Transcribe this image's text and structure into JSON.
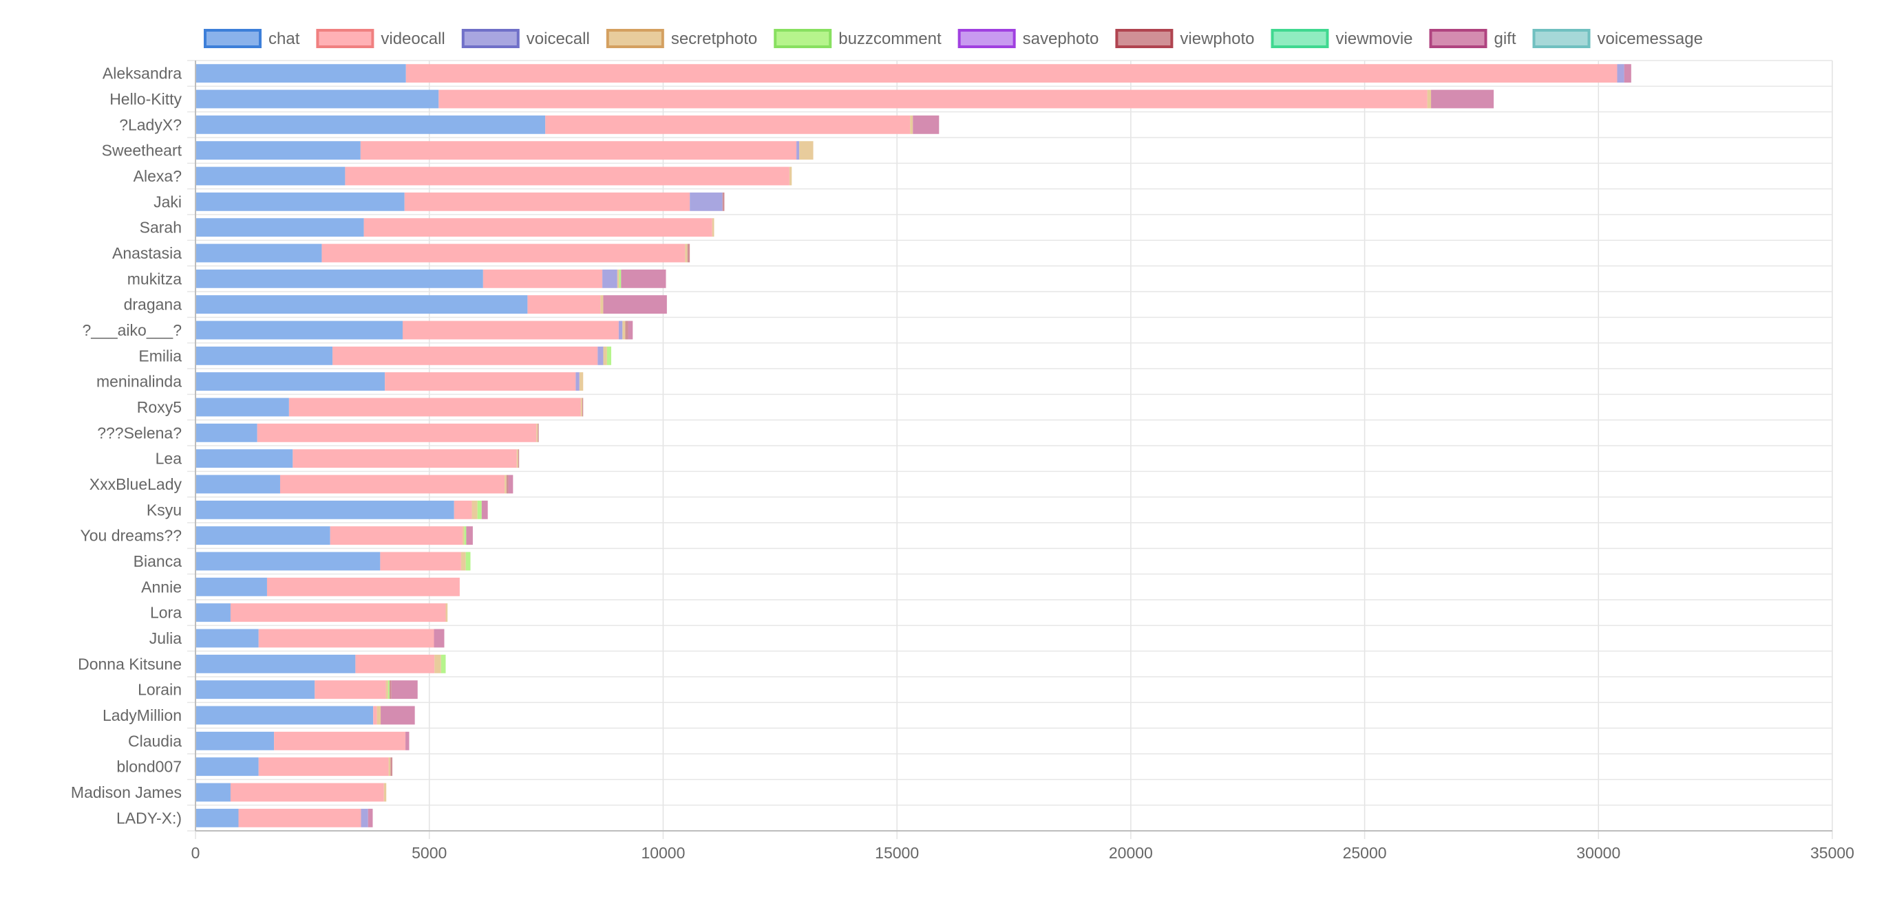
{
  "chart_data": {
    "type": "bar",
    "orientation": "horizontal",
    "stacked": true,
    "title": "",
    "xlabel": "",
    "ylabel": "",
    "xlim": [
      0,
      35000
    ],
    "xticks": [
      0,
      5000,
      10000,
      15000,
      20000,
      25000,
      30000,
      35000
    ],
    "grid": true,
    "legend_position": "top",
    "categories": [
      "Aleksandra",
      "Hello-Kitty",
      "?LadyX?",
      "Sweetheart",
      "Alexa?",
      "Jaki",
      "Sarah",
      "Anastasia",
      "mukitza",
      "dragana",
      "?___aiko___?",
      "Emilia",
      "meninalinda",
      "Roxy5",
      "???Selena?",
      "Lea",
      "XxxBlueLady",
      "Ksyu",
      "You dreams??",
      "Bianca",
      "Annie",
      "Lora",
      "Julia",
      "Donna Kitsune",
      "Lorain",
      "LadyMillion",
      "Claudia",
      "blond007",
      "Madison James",
      "LADY-X:)"
    ],
    "series": [
      {
        "name": "chat",
        "color": "#3d7fd9",
        "fill": "#8ab2eb",
        "values": [
          4500,
          5200,
          7480,
          3530,
          3200,
          4470,
          3600,
          2700,
          6150,
          7100,
          4430,
          2930,
          4050,
          2000,
          1320,
          2080,
          1810,
          5530,
          2880,
          3950,
          1530,
          750,
          1350,
          3420,
          2550,
          3800,
          1680,
          1350,
          750,
          920
        ]
      },
      {
        "name": "videocall",
        "color": "#f08080",
        "fill": "#ffb1b5",
        "values": [
          25900,
          21140,
          7800,
          9320,
          9500,
          6100,
          7450,
          7770,
          2550,
          1560,
          4620,
          5670,
          4080,
          6240,
          5970,
          4790,
          4800,
          380,
          2830,
          1730,
          4120,
          4600,
          3750,
          1690,
          1520,
          80,
          2810,
          2780,
          3280,
          2620
        ]
      },
      {
        "name": "voicecall",
        "color": "#7070c8",
        "fill": "#a8a6e0",
        "values": [
          150,
          0,
          0,
          60,
          0,
          700,
          0,
          0,
          320,
          0,
          80,
          120,
          80,
          0,
          0,
          0,
          0,
          0,
          0,
          0,
          0,
          0,
          0,
          0,
          0,
          0,
          0,
          0,
          0,
          150
        ]
      },
      {
        "name": "secretphoto",
        "color": "#d4a060",
        "fill": "#e8cc9c",
        "values": [
          0,
          80,
          60,
          300,
          50,
          0,
          40,
          50,
          40,
          60,
          60,
          80,
          80,
          30,
          30,
          30,
          40,
          120,
          40,
          100,
          0,
          40,
          0,
          140,
          50,
          80,
          0,
          40,
          50,
          0
        ]
      },
      {
        "name": "buzzcomment",
        "color": "#88e060",
        "fill": "#b6f48c",
        "values": [
          0,
          0,
          0,
          0,
          0,
          0,
          0,
          0,
          40,
          0,
          0,
          90,
          0,
          0,
          0,
          0,
          0,
          90,
          40,
          100,
          0,
          0,
          0,
          100,
          30,
          0,
          0,
          0,
          0,
          0
        ]
      },
      {
        "name": "savephoto",
        "color": "#a040e0",
        "fill": "#c89af0",
        "values": [
          0,
          0,
          0,
          0,
          0,
          0,
          0,
          0,
          0,
          0,
          0,
          0,
          0,
          0,
          0,
          0,
          0,
          0,
          0,
          0,
          0,
          0,
          0,
          0,
          0,
          0,
          0,
          0,
          0,
          0
        ]
      },
      {
        "name": "viewphoto",
        "color": "#b04450",
        "fill": "#d09096",
        "values": [
          0,
          0,
          0,
          0,
          0,
          40,
          0,
          50,
          0,
          0,
          60,
          0,
          0,
          20,
          20,
          20,
          40,
          0,
          0,
          0,
          0,
          0,
          0,
          0,
          40,
          0,
          0,
          40,
          0,
          0
        ]
      },
      {
        "name": "viewmovie",
        "color": "#40d890",
        "fill": "#90ecc0",
        "values": [
          0,
          0,
          0,
          0,
          0,
          0,
          0,
          0,
          0,
          0,
          0,
          0,
          0,
          0,
          0,
          0,
          0,
          0,
          0,
          0,
          0,
          0,
          0,
          0,
          0,
          0,
          0,
          0,
          0,
          0
        ]
      },
      {
        "name": "gift",
        "color": "#b04480",
        "fill": "#d48cb0",
        "values": [
          150,
          1340,
          560,
          0,
          0,
          0,
          0,
          0,
          960,
          1360,
          100,
          0,
          0,
          0,
          0,
          0,
          100,
          130,
          140,
          0,
          0,
          0,
          220,
          0,
          560,
          730,
          80,
          0,
          0,
          100
        ]
      },
      {
        "name": "voicemessage",
        "color": "#70c0c0",
        "fill": "#a6d8d8",
        "values": [
          0,
          0,
          0,
          0,
          0,
          0,
          0,
          0,
          0,
          0,
          0,
          0,
          0,
          0,
          0,
          0,
          0,
          0,
          0,
          0,
          0,
          0,
          0,
          0,
          0,
          0,
          0,
          0,
          0,
          0
        ]
      }
    ]
  }
}
